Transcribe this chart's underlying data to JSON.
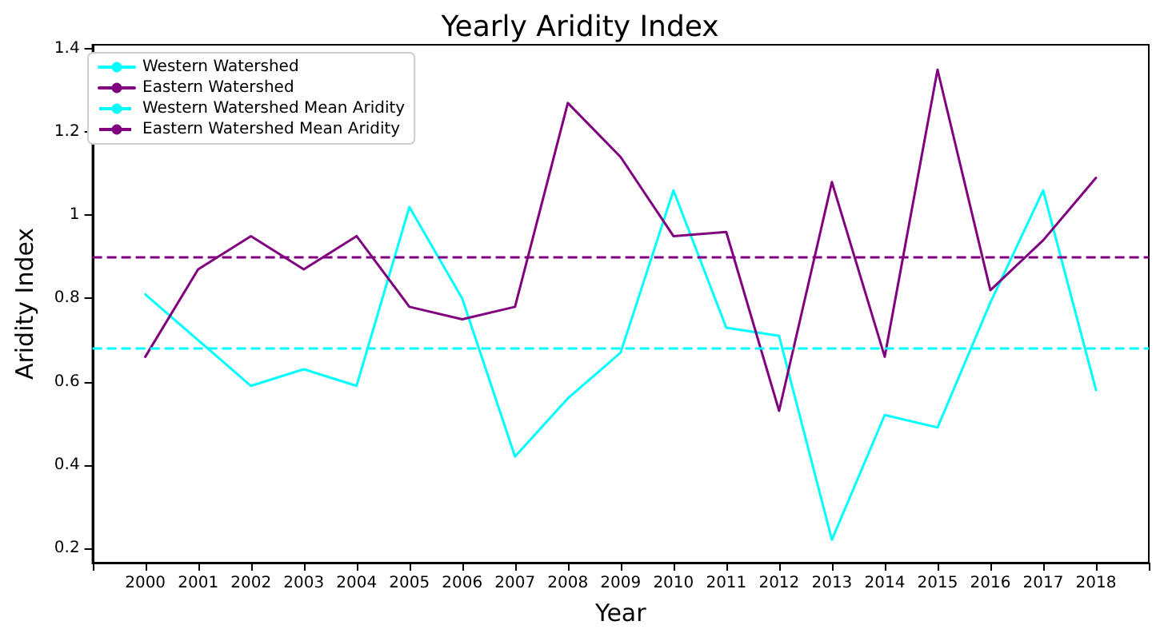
{
  "chart_data": {
    "type": "line",
    "title": "Yearly Aridity Index",
    "xlabel": "Year",
    "ylabel": "Aridity Index",
    "categories": [
      "2000",
      "2001",
      "2002",
      "2003",
      "2004",
      "2005",
      "2006",
      "2007",
      "2008",
      "2009",
      "2010",
      "2011",
      "2012",
      "2013",
      "2014",
      "2015",
      "2016",
      "2017",
      "2018"
    ],
    "series": [
      {
        "name": "Western Watershed",
        "color": "#00ffff",
        "values": [
          0.81,
          0.7,
          0.59,
          0.63,
          0.59,
          1.02,
          0.8,
          0.42,
          0.56,
          0.67,
          1.06,
          0.73,
          0.71,
          0.22,
          0.52,
          0.49,
          0.79,
          1.06,
          0.58
        ]
      },
      {
        "name": "Eastern Watershed",
        "color": "#800080",
        "values": [
          0.66,
          0.87,
          0.95,
          0.87,
          0.95,
          0.78,
          0.75,
          0.78,
          1.27,
          1.14,
          0.95,
          0.96,
          0.53,
          1.08,
          0.66,
          1.35,
          0.82,
          0.94,
          1.09
        ]
      }
    ],
    "ref_lines": [
      {
        "axis": "y",
        "value": 0.68,
        "label": "Western Watershed Mean Aridity",
        "color": "#00ffff",
        "line_style": "dashed"
      },
      {
        "axis": "y",
        "value": 0.9,
        "label": "Eastern Watershed Mean Aridity",
        "color": "#800080",
        "line_style": "dashed"
      }
    ],
    "ylim": [
      0.165,
      1.41
    ],
    "yticks": [
      0.2,
      0.4,
      0.6,
      0.8,
      1.0,
      1.2,
      1.4
    ],
    "legend": "top left",
    "marker": "none",
    "line_style": "solid"
  }
}
